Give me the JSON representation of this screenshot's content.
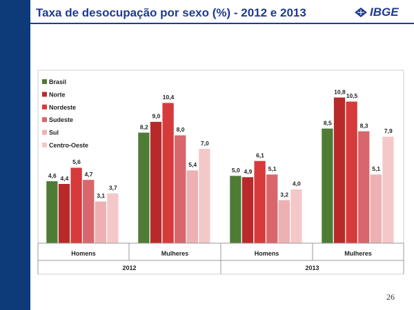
{
  "slide": {
    "title": "Taxa de desocupação por sexo (%) - 2012 e 2013",
    "page_number": "26"
  },
  "logo": {
    "text": "IBGE",
    "icon": "ibge-logo-icon"
  },
  "colors": {
    "sidebar": "#0d3a78",
    "title": "#1f3b8f",
    "Brasil": "#4f7c35",
    "Norte": "#b82a2a",
    "Nordeste": "#d63a3a",
    "Sudeste": "#d9666c",
    "Sul": "#eeb0b2",
    "Centro-Oeste": "#f4c8c9"
  },
  "chart_data": {
    "type": "bar",
    "legend_placement": "top-left",
    "grid": false,
    "ylim": [
      0,
      12
    ],
    "groups": [
      {
        "year": "2012",
        "categories": [
          "Homens",
          "Mulheres"
        ]
      },
      {
        "year": "2013",
        "categories": [
          "Homens",
          "Mulheres"
        ]
      }
    ],
    "series": [
      {
        "name": "Brasil",
        "values": [
          4.6,
          8.2,
          5.0,
          8.5
        ],
        "labels": [
          "4,6",
          "8,2",
          "5,0",
          "8,5"
        ]
      },
      {
        "name": "Norte",
        "values": [
          4.4,
          9.0,
          4.9,
          10.8
        ],
        "labels": [
          "4,4",
          "9,0",
          "4,9",
          "10,8"
        ]
      },
      {
        "name": "Nordeste",
        "values": [
          5.6,
          10.4,
          6.1,
          10.5
        ],
        "labels": [
          "5,6",
          "10,4",
          "6,1",
          "10,5"
        ]
      },
      {
        "name": "Sudeste",
        "values": [
          4.7,
          8.0,
          5.1,
          8.3
        ],
        "labels": [
          "4,7",
          "8,0",
          "5,1",
          "8,3"
        ]
      },
      {
        "name": "Sul",
        "values": [
          3.1,
          5.4,
          3.2,
          5.1
        ],
        "labels": [
          "3,1",
          "5,4",
          "3,2",
          "5,1"
        ]
      },
      {
        "name": "Centro-Oeste",
        "values": [
          3.7,
          7.0,
          4.0,
          7.9
        ],
        "labels": [
          "3,7",
          "7,0",
          "4,0",
          "7,9"
        ]
      }
    ]
  }
}
